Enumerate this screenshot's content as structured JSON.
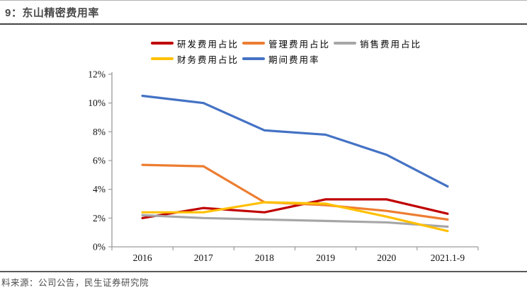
{
  "page": {
    "title": "9：东山精密费用率",
    "source": "料来源：公司公告，民生证券研究院"
  },
  "chart_data": {
    "type": "line",
    "title": "9：东山精密费用率",
    "categories": [
      "2016",
      "2017",
      "2018",
      "2019",
      "2020",
      "2021.1-9"
    ],
    "series": [
      {
        "key": "rd-expense-ratio",
        "name": "研发费用占比",
        "color": "#c00000",
        "values": [
          2.0,
          2.7,
          2.4,
          3.3,
          3.3,
          2.3
        ]
      },
      {
        "key": "admin-expense-ratio",
        "name": "管理费用占比",
        "color": "#ed7d31",
        "values": [
          5.7,
          5.6,
          3.1,
          2.9,
          2.5,
          1.9
        ]
      },
      {
        "key": "sales-expense-ratio",
        "name": "销售费用占比",
        "color": "#a6a6a6",
        "values": [
          2.2,
          2.0,
          1.9,
          1.8,
          1.7,
          1.4
        ]
      },
      {
        "key": "finance-expense-ratio",
        "name": "财务费用占比",
        "color": "#ffc000",
        "values": [
          2.4,
          2.4,
          3.1,
          3.0,
          2.1,
          1.1
        ]
      },
      {
        "key": "period-expense-rate",
        "name": "期间费用率",
        "color": "#4472c4",
        "values": [
          10.5,
          10.0,
          8.1,
          7.8,
          6.4,
          4.2
        ]
      }
    ],
    "xlabel": "",
    "ylabel": "",
    "ylim": [
      0,
      12
    ],
    "ytick_labels": [
      "0%",
      "2%",
      "4%",
      "6%",
      "8%",
      "10%",
      "12%"
    ],
    "legend_position": "top",
    "legend_rows": [
      [
        0,
        1,
        2
      ],
      [
        3,
        4
      ]
    ],
    "grid": false,
    "axis_color": "#9c9c9c"
  }
}
